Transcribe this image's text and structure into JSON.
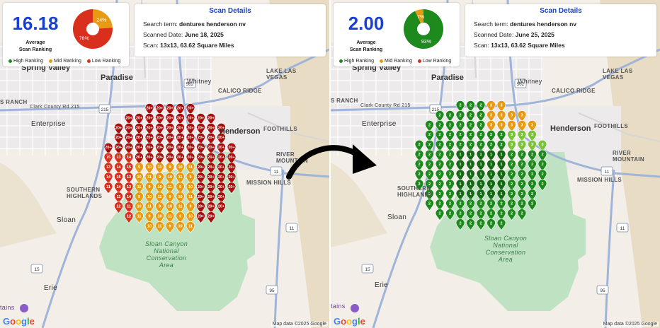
{
  "colors": {
    "high": "#1e8a1e",
    "mid": "#e89b12",
    "low": "#d9301e",
    "dark_red": "#a80e0e",
    "accent": "#1a3fd1"
  },
  "icons": [
    "map-pin-icon",
    "google-logo",
    "curved-arrow-icon",
    "park-poi-icon"
  ],
  "legend": {
    "high": "High Ranking",
    "mid": "Mid Ranking",
    "low": "Low Ranking"
  },
  "before": {
    "score": "16.18",
    "score_caption_1": "Average",
    "score_caption_2": "Scan Ranking",
    "pie": {
      "high_pct": 0,
      "mid_pct": 24,
      "low_pct": 76,
      "mid_label": "24%",
      "low_label": "76%"
    },
    "details_title": "Scan Details",
    "search_term_label": "Search term:",
    "search_term": "dentures henderson nv",
    "date_label": "Scanned Date:",
    "date": "June 18, 2025",
    "scan_label": "Scan:",
    "scan": "13x13, 63.62 Square Miles"
  },
  "after": {
    "score": "2.00",
    "score_caption_1": "Average",
    "score_caption_2": "Scan Ranking",
    "pie": {
      "high_pct": 93,
      "mid_pct": 7,
      "low_pct": 0,
      "high_label": "93%",
      "mid_label": "7%"
    },
    "details_title": "Scan Details",
    "search_term_label": "Search term:",
    "search_term": "dentures henderson nv",
    "date_label": "Scanned Date:",
    "date": "June 25, 2025",
    "scan_label": "Scan:",
    "scan": "13x13, 63.62 Square Miles"
  },
  "map": {
    "labels": {
      "spring_valley": "Spring Valley",
      "paradise": "Paradise",
      "whitney": "Whitney",
      "henderson": "Henderson",
      "enterprise": "Enterprise",
      "sloan": "Sloan",
      "erie": "Erie",
      "lake_las_vegas": "LAKE LAS VEGAS",
      "calico_ridge": "CALICO RIDGE",
      "foothills": "FOOTHILLS",
      "river_mountain": "RIVER MOUNTAIN",
      "mission_hills": "MISSION HILLS",
      "southern_highlands": "SOUTHERN HIGHLANDS",
      "s_ranch": "S RANCH",
      "clark_county": "Clark County Rd 215",
      "sloan_canyon": "Sloan Canyon National Conservation Area",
      "tains": "tains"
    },
    "google": "Google",
    "attribution": "Map data ©2025 Google"
  }
}
